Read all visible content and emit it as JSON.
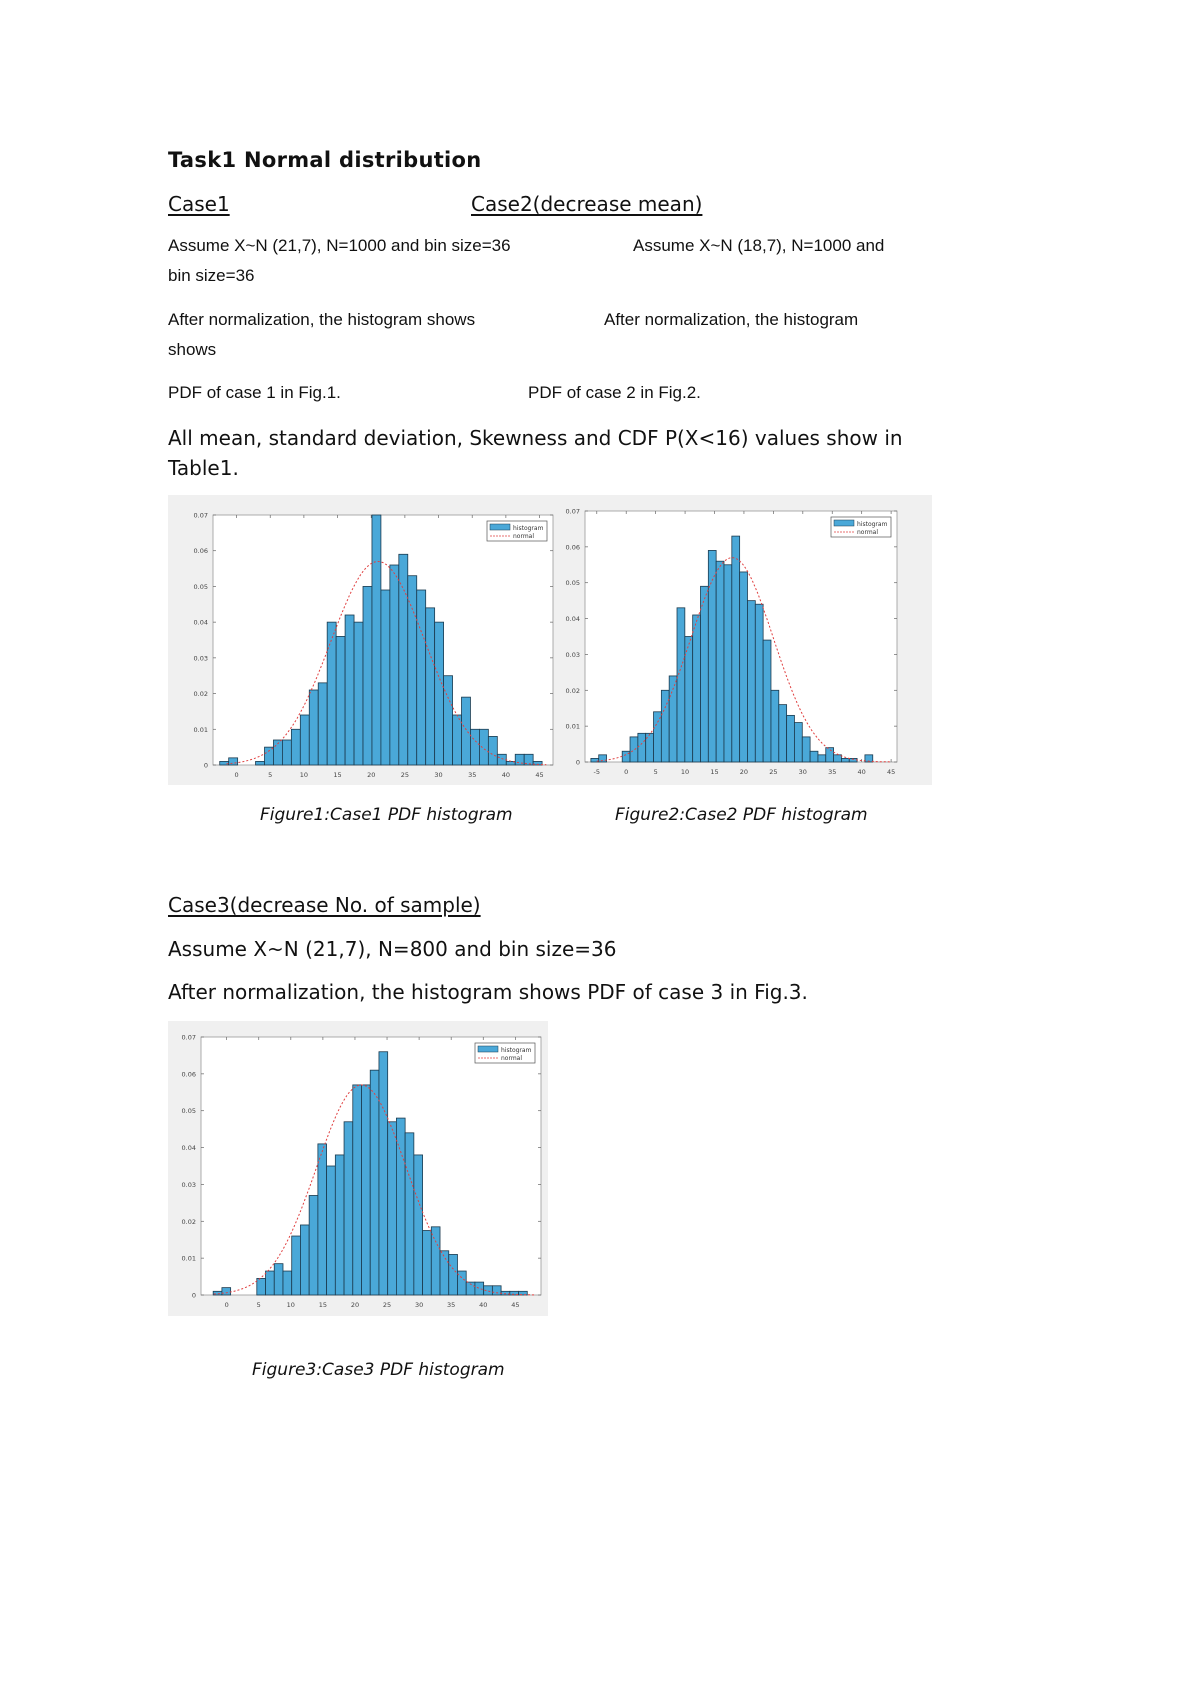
{
  "document": {
    "title": "Task1 Normal distribution",
    "case1": {
      "heading": "Case1 ",
      "assume": "Assume X~N (21,7), N=1000 and bin size=36",
      "assume_wrap": "bin size=36",
      "after": "After normalization, the histogram shows",
      "after_wrap": "shows",
      "pdf_ref": "PDF of case 1 in Fig.1."
    },
    "case2": {
      "heading": " Case2(decrease mean)",
      "assume": "Assume X~N (18,7), N=1000 and",
      "after": "After normalization, the histogram",
      "pdf_ref": "PDF of case 2 in Fig.2."
    },
    "summary_line1": "All mean, standard deviation, Skewness and CDF P(X<16) values show in",
    "summary_line2": "Table1.",
    "figure1_caption": "Figure1:Case1 PDF histogram",
    "figure2_caption": "Figure2:Case2 PDF histogram",
    "case3": {
      "heading": "Case3(decrease No. of sample) ",
      "assume": "Assume X~N (21,7), N=800 and bin size=36",
      "after": "After normalization, the histogram shows PDF of case 3 in Fig.3."
    },
    "figure3_caption": "Figure3:Case3 PDF histogram"
  },
  "colors": {
    "bar_fill": "#4aa8d8",
    "bar_edge": "#1b3a4e",
    "normal_curve": "#e04040",
    "panel_bg": "#f0f0f0"
  },
  "chart_data": [
    {
      "type": "bar",
      "id": "fig1",
      "title": "Figure1:Case1 PDF histogram",
      "xlabel": "",
      "ylabel": "",
      "legend": [
        "histogram",
        "normal"
      ],
      "legend_position": "top-right",
      "xlim": [
        -3.5,
        47
      ],
      "ylim": [
        0,
        0.07
      ],
      "xticks": [
        0,
        5,
        10,
        15,
        20,
        25,
        30,
        35,
        40,
        45
      ],
      "yticks": [
        0,
        0.01,
        0.02,
        0.03,
        0.04,
        0.05,
        0.06,
        0.07
      ],
      "ytick_labels": [
        "0",
        "0.01",
        "0.02",
        "0.03",
        "0.04",
        "0.05",
        "0.06",
        "0.07"
      ],
      "bin_start": -2.5,
      "bin_width": 1.33,
      "values": [
        0.001,
        0.002,
        0,
        0,
        0.001,
        0.005,
        0.007,
        0.007,
        0.01,
        0.014,
        0.021,
        0.023,
        0.04,
        0.036,
        0.042,
        0.04,
        0.05,
        0.07,
        0.049,
        0.056,
        0.059,
        0.053,
        0.049,
        0.044,
        0.04,
        0.025,
        0.014,
        0.019,
        0.01,
        0.01,
        0.008,
        0.003,
        0.001,
        0.003,
        0.003,
        0.001
      ],
      "normal_fit": {
        "mean": 21,
        "std": 7
      }
    },
    {
      "type": "bar",
      "id": "fig2",
      "title": "Figure2:Case2 PDF histogram",
      "xlabel": "",
      "ylabel": "",
      "legend": [
        "histogram",
        "normal"
      ],
      "legend_position": "top-right",
      "xlim": [
        -7,
        46
      ],
      "ylim": [
        0,
        0.07
      ],
      "xticks": [
        -5,
        0,
        5,
        10,
        15,
        20,
        25,
        30,
        35,
        40,
        45
      ],
      "yticks": [
        0,
        0.01,
        0.02,
        0.03,
        0.04,
        0.05,
        0.06,
        0.07
      ],
      "ytick_labels": [
        "0",
        "0.01",
        "0.02",
        "0.03",
        "0.04",
        "0.05",
        "0.06",
        "0.07"
      ],
      "bin_start": -6,
      "bin_width": 1.33,
      "values": [
        0.001,
        0.002,
        0,
        0,
        0.003,
        0.007,
        0.008,
        0.008,
        0.014,
        0.02,
        0.024,
        0.043,
        0.035,
        0.041,
        0.049,
        0.059,
        0.056,
        0.055,
        0.063,
        0.053,
        0.045,
        0.044,
        0.034,
        0.02,
        0.016,
        0.013,
        0.011,
        0.007,
        0.003,
        0.002,
        0.004,
        0.002,
        0.001,
        0.001,
        0,
        0.002
      ],
      "normal_fit": {
        "mean": 18,
        "std": 7
      }
    },
    {
      "type": "bar",
      "id": "fig3",
      "title": "Figure3:Case3 PDF histogram",
      "xlabel": "",
      "ylabel": "",
      "legend": [
        "histogram",
        "normal"
      ],
      "legend_position": "top-right",
      "xlim": [
        -4,
        49
      ],
      "ylim": [
        0,
        0.07
      ],
      "xticks": [
        0,
        5,
        10,
        15,
        20,
        25,
        30,
        35,
        40,
        45
      ],
      "yticks": [
        0,
        0.01,
        0.02,
        0.03,
        0.04,
        0.05,
        0.06,
        0.07
      ],
      "ytick_labels": [
        "0",
        "0.01",
        "0.02",
        "0.03",
        "0.04",
        "0.05",
        "0.06",
        "0.07"
      ],
      "bin_start": -2.1,
      "bin_width": 1.36,
      "values": [
        0.001,
        0.002,
        0,
        0,
        0,
        0.0045,
        0.0065,
        0.0085,
        0.0065,
        0.016,
        0.019,
        0.027,
        0.041,
        0.035,
        0.038,
        0.047,
        0.057,
        0.057,
        0.061,
        0.066,
        0.047,
        0.048,
        0.044,
        0.038,
        0.0175,
        0.0185,
        0.012,
        0.011,
        0.0065,
        0.0035,
        0.0035,
        0.0025,
        0.0025,
        0.001,
        0.001,
        0.001
      ],
      "normal_fit": {
        "mean": 21,
        "std": 7
      }
    }
  ]
}
